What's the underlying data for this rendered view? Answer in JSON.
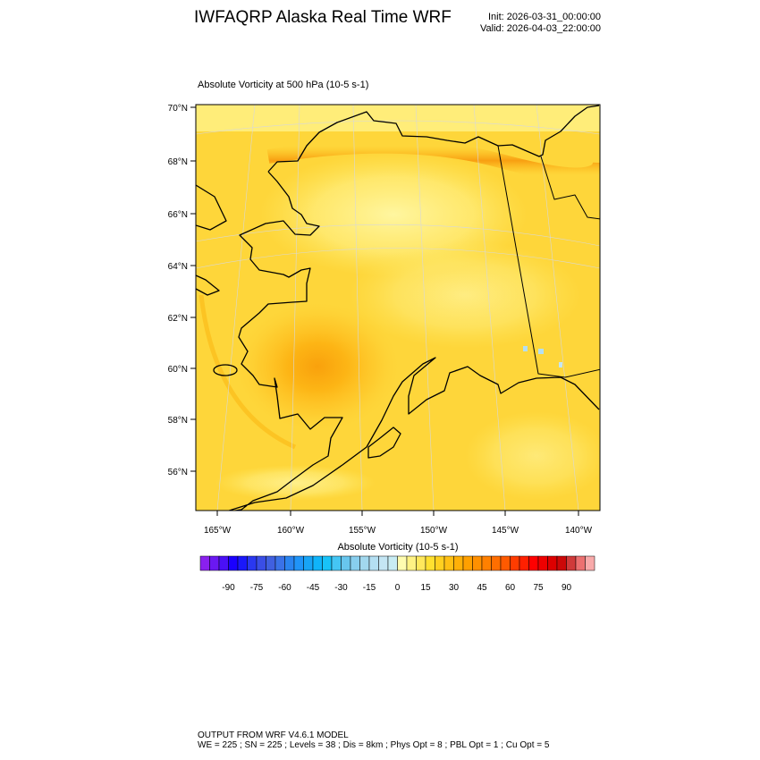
{
  "header": {
    "title": "IWFAQRP Alaska Real Time WRF",
    "init": "Init: 2026-03-31_00:00:00",
    "valid": "Valid: 2026-04-03_22:00:00"
  },
  "plot": {
    "subtitle": "Absolute Vorticity at 500 hPa   (10-5 s-1)",
    "lat_labels": [
      "70°N",
      "68°N",
      "66°N",
      "64°N",
      "62°N",
      "60°N",
      "58°N",
      "56°N"
    ],
    "lon_labels": [
      "165°W",
      "160°W",
      "155°W",
      "150°W",
      "145°W",
      "140°W"
    ],
    "field_colors": {
      "base": "#fed63a",
      "light": "#fff48e",
      "dark": "#fdb515",
      "max": "#f9a10c"
    }
  },
  "colorbar": {
    "title": "Absolute Vorticity  (10-5 s-1)",
    "levels_min": -105,
    "levels_max": 105,
    "step": 5,
    "tick_labels": [
      "-90",
      "-75",
      "-60",
      "-45",
      "-30",
      "-15",
      "0",
      "15",
      "30",
      "45",
      "60",
      "75",
      "90"
    ],
    "colors": [
      "#8a20ee",
      "#6a18f2",
      "#4a10f6",
      "#1a00ff",
      "#1a18fa",
      "#2a38f0",
      "#3a4ee6",
      "#4060e0",
      "#3a72e8",
      "#2a84f0",
      "#2094f8",
      "#18a4f6",
      "#10b4fa",
      "#18c2f8",
      "#44c6f4",
      "#68c6ee",
      "#88ceee",
      "#a2d8ee",
      "#b4dff2",
      "#c4e6f4",
      "#c8ecf4",
      "#fffcb0",
      "#fff284",
      "#ffe85c",
      "#ffe030",
      "#ffd020",
      "#ffc014",
      "#ffb008",
      "#ffa000",
      "#ff9000",
      "#ff8000",
      "#ff6e00",
      "#ff5a00",
      "#ff3c00",
      "#ff2000",
      "#ff0000",
      "#ee0000",
      "#dd0000",
      "#cc0808",
      "#d03a3a",
      "#ec7070",
      "#f8aaaa"
    ]
  },
  "footer": {
    "line1": "OUTPUT FROM WRF V4.6.1 MODEL",
    "line2": "WE = 225 ; SN = 225 ; Levels = 38 ; Dis = 8km ; Phys Opt = 8 ; PBL Opt = 1 ; Cu Opt = 5"
  }
}
